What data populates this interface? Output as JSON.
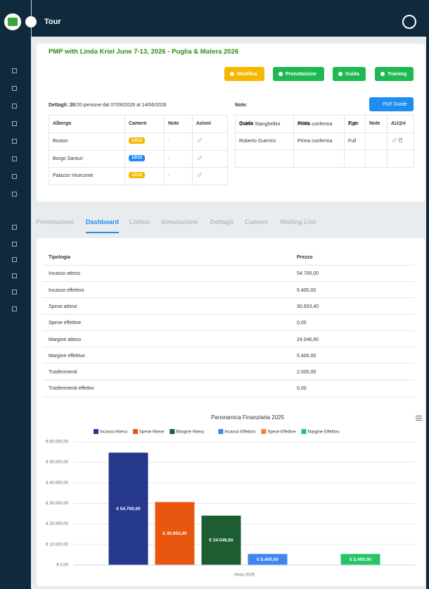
{
  "header": {
    "title": "Tour"
  },
  "tour": {
    "title": "PMP with Linda Kriel June 7-13, 2026 - Puglia & Matera 2026",
    "buttons": [
      {
        "label": "Modifica",
        "color": "#f5b800"
      },
      {
        "label": "Prenotazione",
        "color": "#1fb954"
      },
      {
        "label": "Guida",
        "color": "#1fb954"
      },
      {
        "label": "Training",
        "color": "#1fb954"
      }
    ],
    "details": {
      "label": "Dettagli:",
      "count": "20",
      "text": "/20 persone dal 07/06/2026 al 14/06/2026"
    },
    "hotels": {
      "columns": [
        "Albergo",
        "Camere",
        "Note",
        "Azioni"
      ],
      "rows": [
        {
          "name": "Boston",
          "rooms": "12/12",
          "rooms_color": "#f5b800",
          "note": "-"
        },
        {
          "name": "Borgo Santuri",
          "rooms": "12/13",
          "rooms_color": "#1f8cf0",
          "note": "-"
        },
        {
          "name": "Palazzo Viceconte",
          "rooms": "12/12",
          "rooms_color": "#f5b800",
          "note": "-"
        }
      ]
    },
    "notes_label": "Note:",
    "pdf_button": "PDF Guide",
    "guides": {
      "columns": [
        "Guida",
        "Stato",
        "Tipo",
        "Note",
        "Azioni"
      ],
      "rows": [
        [
          "Gianni Stanghellini",
          "Prima conferma",
          "Full"
        ],
        [
          "Roberto Guerrini",
          "Prima conferma",
          "Full"
        ]
      ]
    }
  },
  "tabs": [
    "Prenotazioni",
    "Dashboard",
    "Listino",
    "Simulazione",
    "Dettagli",
    "Camere",
    "Waiting List"
  ],
  "active_tab": 1,
  "finance": {
    "columns": [
      "Tipologia",
      "Prezzo"
    ],
    "rows": [
      [
        "Incasso atteso",
        "54.700,00"
      ],
      [
        "Incasso effettivo",
        "5.400,00"
      ],
      [
        "Spese attese",
        "30.653,40"
      ],
      [
        "Spese effettive",
        "0,00"
      ],
      [
        "Margine atteso",
        "24.046,60"
      ],
      [
        "Margine effettivo",
        "5.400,00"
      ],
      [
        "Trasferimenti",
        "2.000,00"
      ],
      [
        "Trasferimenti effettivi",
        "0,00"
      ]
    ]
  },
  "chart_data": {
    "type": "bar",
    "title": "Panoramica Finanziaria 2025",
    "categories": [
      "Anno 2025"
    ],
    "series": [
      {
        "name": "Incasso Atteso",
        "color": "#26388c",
        "values": [
          54700
        ],
        "value_labels": [
          "€ 54.700,00"
        ]
      },
      {
        "name": "Spese Attese",
        "color": "#e8560f",
        "values": [
          30653.4
        ],
        "value_labels": [
          "€ 30.653,40"
        ]
      },
      {
        "name": "Margine Atteso",
        "color": "#1c5e32",
        "values": [
          24046.6
        ],
        "value_labels": [
          "€ 24.046,60"
        ]
      },
      {
        "name": "Incasso Effettivo",
        "color": "#3f86f0",
        "values": [
          5400
        ],
        "value_labels": [
          "€ 5.400,00"
        ]
      },
      {
        "name": "Spese Effettive",
        "color": "#f7802a",
        "values": [
          0
        ]
      },
      {
        "name": "Margine Effettivo",
        "color": "#28c46a",
        "values": [
          5400
        ],
        "value_labels": [
          "€ 5.400,00"
        ]
      }
    ],
    "ylim": [
      0,
      60000
    ],
    "yticks": [
      {
        "value": 0,
        "label": "€ 0,00"
      },
      {
        "value": 10000,
        "label": "€ 10.000,00"
      },
      {
        "value": 20000,
        "label": "€ 20.000,00"
      },
      {
        "value": 30000,
        "label": "€ 30.000,00"
      },
      {
        "value": 40000,
        "label": "€ 40.000,00"
      },
      {
        "value": 50000,
        "label": "€ 50.000,00"
      },
      {
        "value": 60000,
        "label": "€ 60.000,00"
      }
    ],
    "grid": true,
    "legend": "top"
  }
}
